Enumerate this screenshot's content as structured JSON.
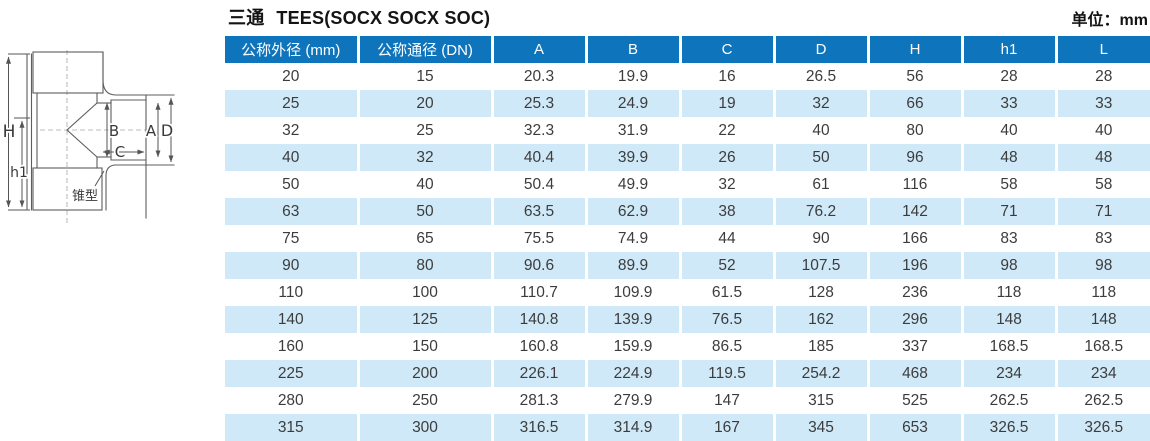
{
  "title_cn": "三通",
  "title_en": "TEES(SOCX SOCX SOC)",
  "unit_label": "单位：mm",
  "colors": {
    "header_bg": "#0e74bc",
    "stripe_bg": "#cfe9f8",
    "text": "#3c3c3c"
  },
  "diagram": {
    "labels": {
      "H": "H",
      "h1": "h1",
      "A": "A",
      "B": "B",
      "C": "C",
      "D": "D",
      "cone": "锥型"
    }
  },
  "table": {
    "headers": [
      "公称外径 (mm)",
      "公称通径 (DN)",
      "A",
      "B",
      "C",
      "D",
      "H",
      "h1",
      "L"
    ],
    "rows": [
      [
        "20",
        "15",
        "20.3",
        "19.9",
        "16",
        "26.5",
        "56",
        "28",
        "28"
      ],
      [
        "25",
        "20",
        "25.3",
        "24.9",
        "19",
        "32",
        "66",
        "33",
        "33"
      ],
      [
        "32",
        "25",
        "32.3",
        "31.9",
        "22",
        "40",
        "80",
        "40",
        "40"
      ],
      [
        "40",
        "32",
        "40.4",
        "39.9",
        "26",
        "50",
        "96",
        "48",
        "48"
      ],
      [
        "50",
        "40",
        "50.4",
        "49.9",
        "32",
        "61",
        "116",
        "58",
        "58"
      ],
      [
        "63",
        "50",
        "63.5",
        "62.9",
        "38",
        "76.2",
        "142",
        "71",
        "71"
      ],
      [
        "75",
        "65",
        "75.5",
        "74.9",
        "44",
        "90",
        "166",
        "83",
        "83"
      ],
      [
        "90",
        "80",
        "90.6",
        "89.9",
        "52",
        "107.5",
        "196",
        "98",
        "98"
      ],
      [
        "110",
        "100",
        "110.7",
        "109.9",
        "61.5",
        "128",
        "236",
        "118",
        "118"
      ],
      [
        "140",
        "125",
        "140.8",
        "139.9",
        "76.5",
        "162",
        "296",
        "148",
        "148"
      ],
      [
        "160",
        "150",
        "160.8",
        "159.9",
        "86.5",
        "185",
        "337",
        "168.5",
        "168.5"
      ],
      [
        "225",
        "200",
        "226.1",
        "224.9",
        "119.5",
        "254.2",
        "468",
        "234",
        "234"
      ],
      [
        "280",
        "250",
        "281.3",
        "279.9",
        "147",
        "315",
        "525",
        "262.5",
        "262.5"
      ],
      [
        "315",
        "300",
        "316.5",
        "314.9",
        "167",
        "345",
        "653",
        "326.5",
        "326.5"
      ]
    ]
  }
}
